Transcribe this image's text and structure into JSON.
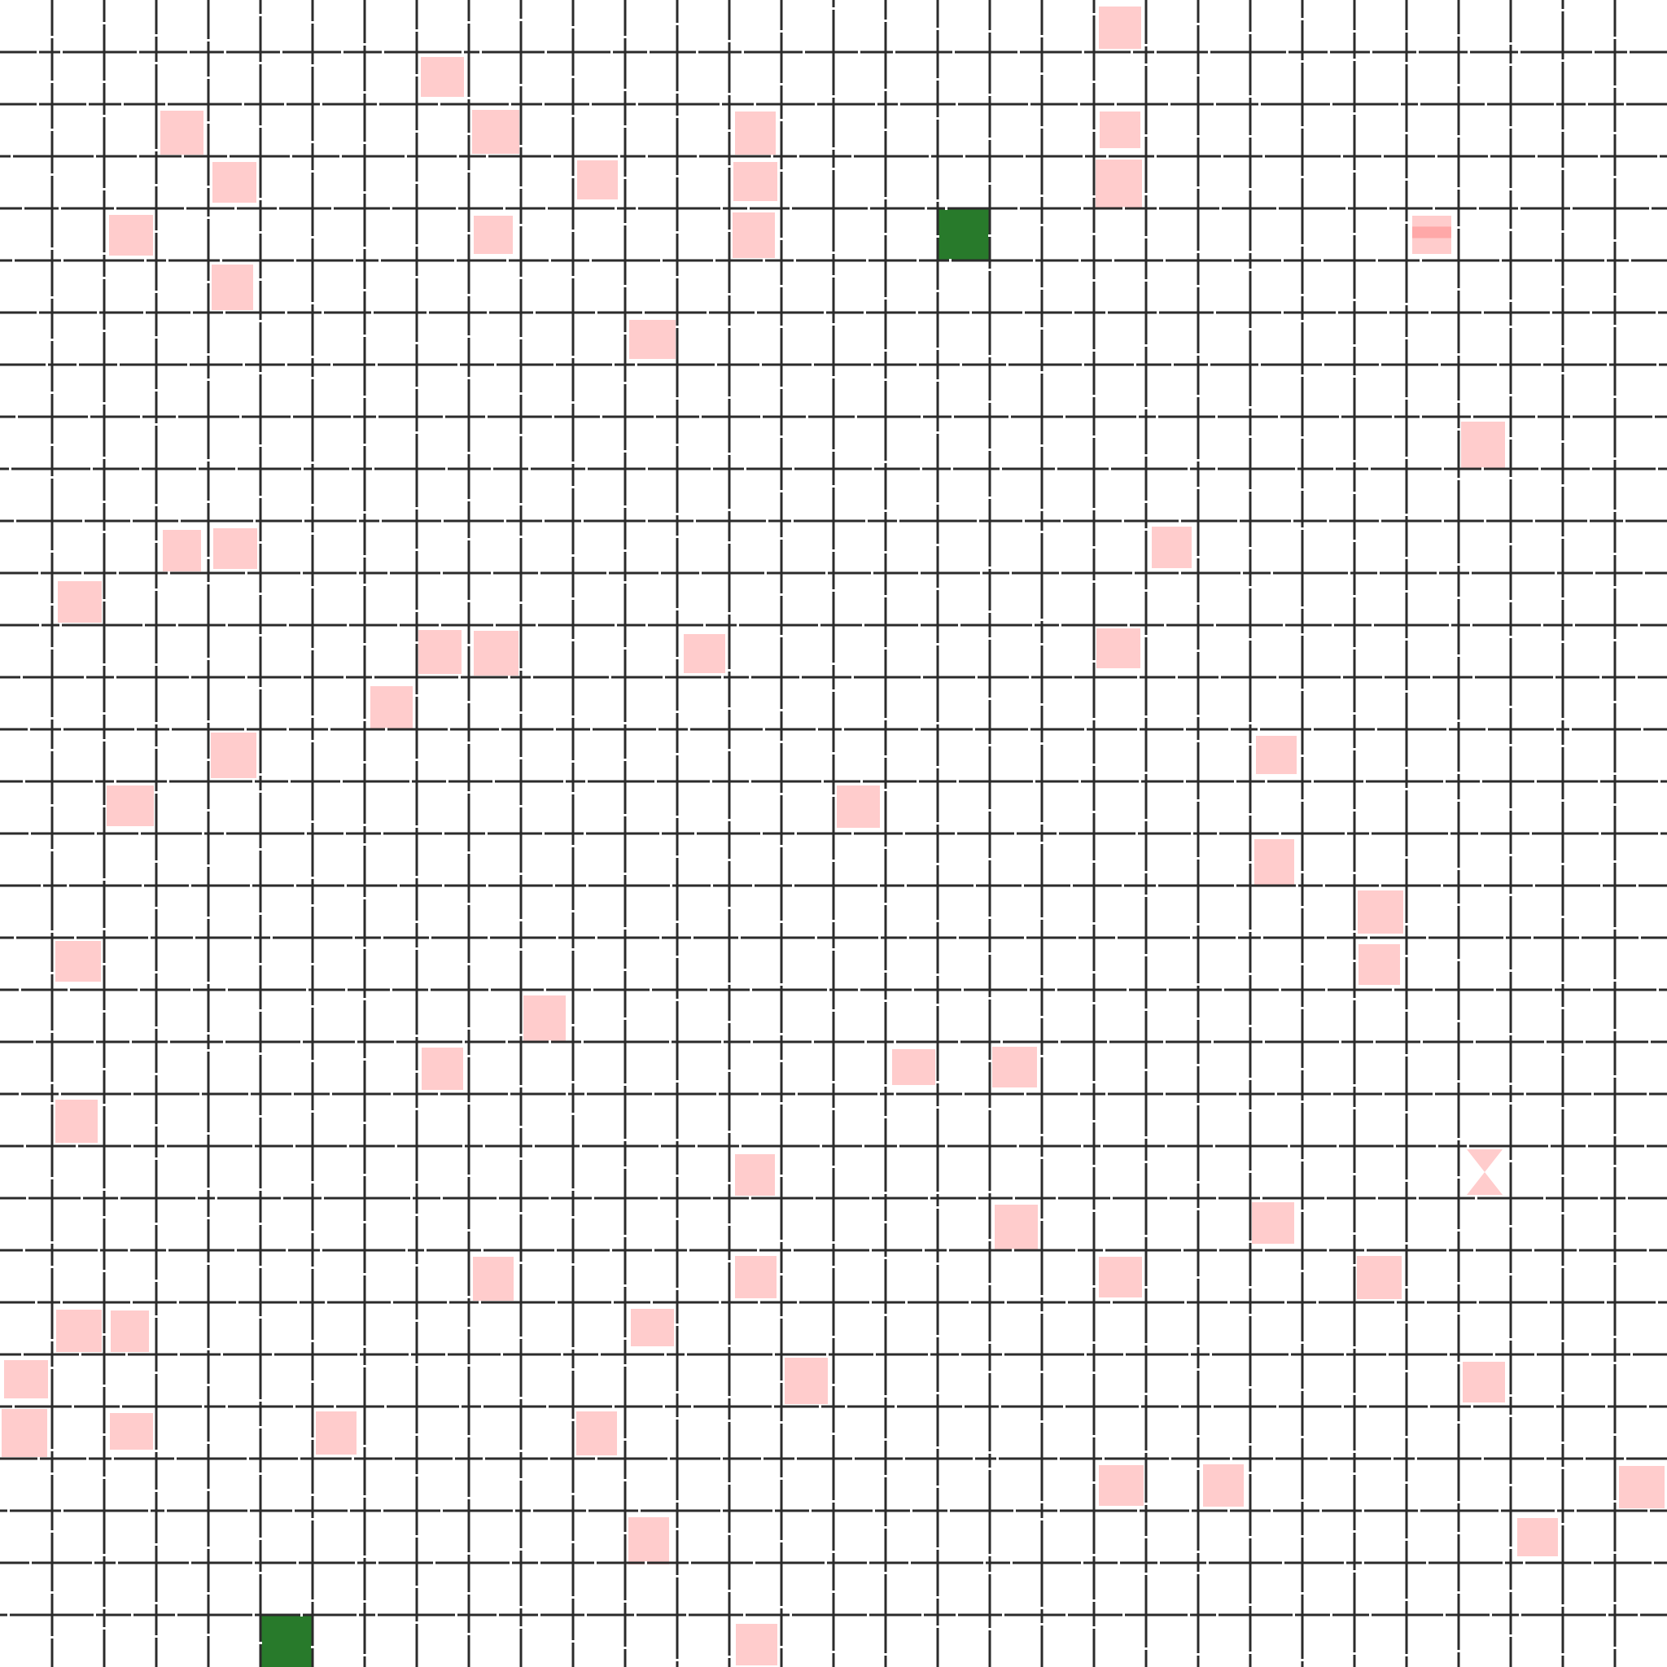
{
  "board": {
    "columns": 32,
    "rows": 32,
    "colors": {
      "background": "#ffffff",
      "grid_line": "#2b2b2b",
      "grid_gap": "#ffffff",
      "target": "#287a2b",
      "hazard": "#ffcccc",
      "hazard_dark": "#ffa8a8"
    },
    "targets": [
      {
        "row": 4,
        "col": 18
      },
      {
        "row": 31,
        "col": 5
      }
    ],
    "hazards": [
      {
        "row": 0,
        "col": 21
      },
      {
        "row": 1,
        "col": 8
      },
      {
        "row": 2,
        "col": 3
      },
      {
        "row": 2,
        "col": 9
      },
      {
        "row": 2,
        "col": 14
      },
      {
        "row": 2,
        "col": 21
      },
      {
        "row": 3,
        "col": 4
      },
      {
        "row": 3,
        "col": 11
      },
      {
        "row": 3,
        "col": 14
      },
      {
        "row": 3,
        "col": 21
      },
      {
        "row": 4,
        "col": 2
      },
      {
        "row": 4,
        "col": 9
      },
      {
        "row": 4,
        "col": 14
      },
      {
        "row": 4,
        "col": 27,
        "shade": "dark"
      },
      {
        "row": 5,
        "col": 4
      },
      {
        "row": 6,
        "col": 12
      },
      {
        "row": 8,
        "col": 28
      },
      {
        "row": 10,
        "col": 3
      },
      {
        "row": 10,
        "col": 4
      },
      {
        "row": 10,
        "col": 22
      },
      {
        "row": 11,
        "col": 1
      },
      {
        "row": 12,
        "col": 8
      },
      {
        "row": 12,
        "col": 9
      },
      {
        "row": 12,
        "col": 13
      },
      {
        "row": 12,
        "col": 21
      },
      {
        "row": 13,
        "col": 7
      },
      {
        "row": 14,
        "col": 4
      },
      {
        "row": 14,
        "col": 24
      },
      {
        "row": 15,
        "col": 2
      },
      {
        "row": 15,
        "col": 16
      },
      {
        "row": 16,
        "col": 24
      },
      {
        "row": 17,
        "col": 26
      },
      {
        "row": 18,
        "col": 1
      },
      {
        "row": 18,
        "col": 26
      },
      {
        "row": 19,
        "col": 10
      },
      {
        "row": 20,
        "col": 8
      },
      {
        "row": 20,
        "col": 17
      },
      {
        "row": 20,
        "col": 19
      },
      {
        "row": 21,
        "col": 1
      },
      {
        "row": 22,
        "col": 14
      },
      {
        "row": 22,
        "col": 28,
        "shape": "hourglass"
      },
      {
        "row": 23,
        "col": 19
      },
      {
        "row": 23,
        "col": 24
      },
      {
        "row": 24,
        "col": 9
      },
      {
        "row": 24,
        "col": 14
      },
      {
        "row": 24,
        "col": 21
      },
      {
        "row": 24,
        "col": 26
      },
      {
        "row": 25,
        "col": 1
      },
      {
        "row": 25,
        "col": 2
      },
      {
        "row": 25,
        "col": 12
      },
      {
        "row": 26,
        "col": 0
      },
      {
        "row": 26,
        "col": 15
      },
      {
        "row": 26,
        "col": 28
      },
      {
        "row": 27,
        "col": 0
      },
      {
        "row": 27,
        "col": 2
      },
      {
        "row": 27,
        "col": 6
      },
      {
        "row": 27,
        "col": 11
      },
      {
        "row": 28,
        "col": 21
      },
      {
        "row": 28,
        "col": 23
      },
      {
        "row": 28,
        "col": 31
      },
      {
        "row": 29,
        "col": 12
      },
      {
        "row": 29,
        "col": 29
      },
      {
        "row": 31,
        "col": 14
      }
    ]
  }
}
